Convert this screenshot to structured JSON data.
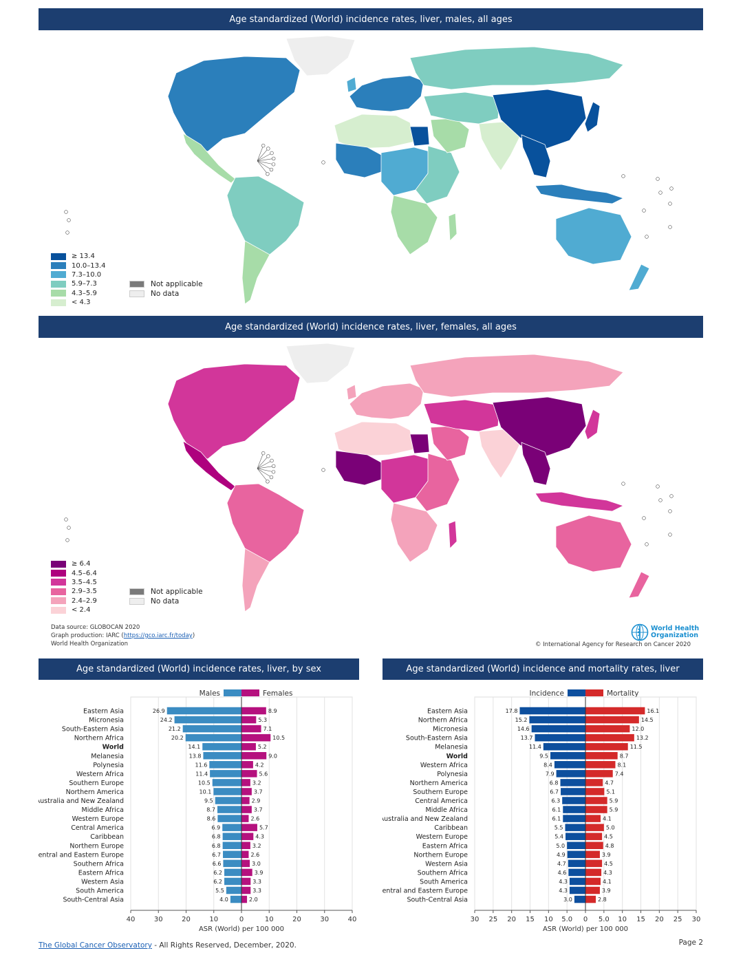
{
  "maps": [
    {
      "title": "Age standardized (World) incidence rates, liver, males, all ages",
      "legend": [
        {
          "label": "≥ 13.4",
          "color": "#08519c"
        },
        {
          "label": "10.0–13.4",
          "color": "#2b7fbb"
        },
        {
          "label": "7.3–10.0",
          "color": "#50abd2"
        },
        {
          "label": "5.9–7.3",
          "color": "#7fcdc0"
        },
        {
          "label": "4.3–5.9",
          "color": "#a7dca8"
        },
        {
          "label": "< 4.3",
          "color": "#d6eecf"
        }
      ],
      "colors": {
        "na_amer": "#2b7fbb",
        "greenland": "#eeeeee",
        "c_amer": "#a7dca8",
        "s_amer": "#7fcdc0",
        "s_amer_south": "#a7dca8",
        "europe": "#2b7fbb",
        "russia": "#7fcdc0",
        "n_africa": "#d6eecf",
        "w_africa": "#2b7fbb",
        "c_africa": "#50abd2",
        "e_africa": "#7fcdc0",
        "s_africa": "#a7dca8",
        "egypt": "#08519c",
        "madagascar": "#a7dca8",
        "arabia": "#a7dca8",
        "c_asia": "#7fcdc0",
        "india": "#d6eecf",
        "china": "#08519c",
        "se_asia": "#08519c",
        "japan": "#08519c",
        "indonesia": "#2b7fbb",
        "australia": "#50abd2",
        "nz": "#50abd2",
        "uk": "#50abd2"
      }
    },
    {
      "title": "Age standardized (World) incidence rates, liver, females, all ages",
      "legend": [
        {
          "label": "≥ 6.4",
          "color": "#7a0177"
        },
        {
          "label": "4.5–6.4",
          "color": "#ae017e"
        },
        {
          "label": "3.5–4.5",
          "color": "#d2369a"
        },
        {
          "label": "2.9–3.5",
          "color": "#e8649f"
        },
        {
          "label": "2.4–2.9",
          "color": "#f4a3bb"
        },
        {
          "label": "< 2.4",
          "color": "#fbd2d7"
        }
      ],
      "colors": {
        "na_amer": "#d2369a",
        "greenland": "#eeeeee",
        "c_amer": "#ae017e",
        "s_amer": "#e8649f",
        "s_amer_south": "#f4a3bb",
        "europe": "#f4a3bb",
        "russia": "#f4a3bb",
        "n_africa": "#fbd2d7",
        "w_africa": "#7a0177",
        "c_africa": "#d2369a",
        "e_africa": "#e8649f",
        "s_africa": "#f4a3bb",
        "egypt": "#7a0177",
        "madagascar": "#d2369a",
        "arabia": "#e8649f",
        "c_asia": "#d2369a",
        "india": "#fbd2d7",
        "china": "#7a0177",
        "se_asia": "#7a0177",
        "japan": "#d2369a",
        "indonesia": "#d2369a",
        "australia": "#e8649f",
        "nz": "#e8649f",
        "uk": "#f4a3bb"
      }
    }
  ],
  "legend_extra": [
    {
      "label": "Not applicable",
      "color": "#7a7a7a"
    },
    {
      "label": "No data",
      "color": "#eeeeee"
    }
  ],
  "source_line1": "Data source: GLOBOCAN 2020",
  "source_line2_prefix": "Graph production: IARC (",
  "source_url": "https://gco.iarc.fr/today",
  "source_line2_suffix": ")",
  "source_line3": "World Health Organization",
  "copyright": "© International Agency for Research on Cancer 2020",
  "who_line1": "World Health",
  "who_line2": "Organization",
  "chart_data": [
    {
      "type": "bar",
      "title": "Age standardized (World) incidence rates, liver, by sex",
      "orientation": "horizontal-butterfly",
      "legend_position": "top-center",
      "xlabel": "ASR (World) per 100 000",
      "xlim": [
        -40,
        40
      ],
      "xticks": [
        "40",
        "30",
        "20",
        "10",
        "0",
        "10",
        "20",
        "30",
        "40"
      ],
      "grid": true,
      "categories": [
        "Eastern Asia",
        "Micronesia",
        "South-Eastern Asia",
        "Northern Africa",
        "World",
        "Melanesia",
        "Polynesia",
        "Western Africa",
        "Southern Europe",
        "Northern America",
        "Australia and New Zealand",
        "Middle Africa",
        "Western Europe",
        "Central America",
        "Caribbean",
        "Northern Europe",
        "Central and Eastern Europe",
        "Southern Africa",
        "Eastern Africa",
        "Western Asia",
        "South America",
        "South-Central Asia"
      ],
      "series": [
        {
          "name": "Males",
          "color": "#3b8cc2",
          "values": [
            26.9,
            24.2,
            21.2,
            20.2,
            14.1,
            13.8,
            11.6,
            11.4,
            10.5,
            10.1,
            9.5,
            8.7,
            8.6,
            6.9,
            6.8,
            6.8,
            6.7,
            6.6,
            6.2,
            6.2,
            5.5,
            4.0
          ]
        },
        {
          "name": "Females",
          "color": "#b5117e",
          "values": [
            8.9,
            5.3,
            7.1,
            10.5,
            5.2,
            9.0,
            4.2,
            5.6,
            3.2,
            3.7,
            2.9,
            3.7,
            2.6,
            5.7,
            4.3,
            3.2,
            2.6,
            3.0,
            3.9,
            3.3,
            3.3,
            2.0
          ]
        }
      ]
    },
    {
      "type": "bar",
      "title": "Age standardized (World) incidence and mortality rates, liver",
      "orientation": "horizontal-butterfly",
      "legend_position": "top-center",
      "xlabel": "ASR (World) per 100 000",
      "xlim": [
        -30,
        30
      ],
      "xticks": [
        "30",
        "25",
        "20",
        "15",
        "10",
        "5.0",
        "0",
        "5.0",
        "10",
        "15",
        "20",
        "25",
        "30"
      ],
      "grid": true,
      "categories": [
        "Eastern Asia",
        "Northern Africa",
        "Micronesia",
        "South-Eastern Asia",
        "Melanesia",
        "World",
        "Western Africa",
        "Polynesia",
        "Northern America",
        "Southern Europe",
        "Central America",
        "Middle Africa",
        "Australia and New Zealand",
        "Caribbean",
        "Western Europe",
        "Eastern Africa",
        "Northern Europe",
        "Western Asia",
        "Southern Africa",
        "South America",
        "Central and Eastern Europe",
        "South-Central Asia"
      ],
      "series": [
        {
          "name": "Incidence",
          "color": "#0d4f9e",
          "values": [
            17.8,
            15.2,
            14.6,
            13.7,
            11.4,
            9.5,
            8.4,
            7.9,
            6.8,
            6.7,
            6.3,
            6.1,
            6.1,
            5.5,
            5.4,
            5.0,
            4.9,
            4.7,
            4.6,
            4.3,
            4.3,
            3.0
          ]
        },
        {
          "name": "Mortality",
          "color": "#d42a2a",
          "values": [
            16.1,
            14.5,
            12.0,
            13.2,
            11.5,
            8.7,
            8.1,
            7.4,
            4.7,
            5.1,
            5.9,
            5.9,
            4.1,
            5.0,
            4.5,
            4.8,
            3.9,
            4.5,
            4.3,
            4.1,
            3.9,
            2.8
          ]
        }
      ]
    }
  ],
  "footer_link": "The Global Cancer Observatory",
  "footer_text": " - All Rights Reserved, December, 2020.",
  "page": "Page 2"
}
